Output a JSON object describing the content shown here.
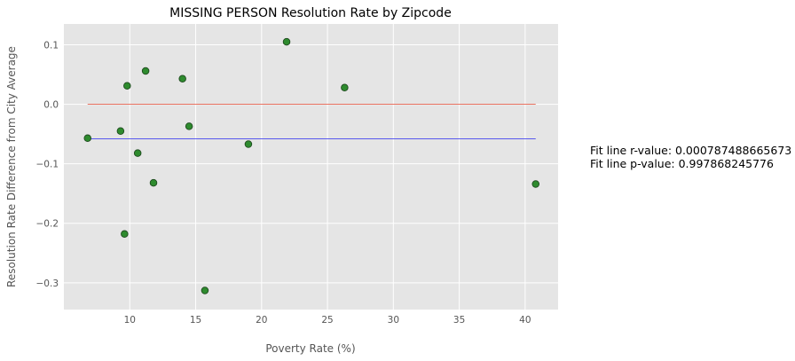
{
  "chart_data": {
    "type": "scatter",
    "title": "MISSING PERSON Resolution Rate by Zipcode",
    "xlabel": "Poverty Rate (%)",
    "ylabel": "Resolution Rate Difference from City Average",
    "xlim": [
      5.0,
      42.5
    ],
    "ylim": [
      -0.345,
      0.135
    ],
    "xticks": [
      10,
      15,
      20,
      25,
      30,
      35,
      40
    ],
    "yticks": [
      -0.3,
      -0.2,
      -0.1,
      0.0,
      0.1
    ],
    "grid": true,
    "background": "#e5e5e5",
    "points": [
      {
        "x": 6.8,
        "y": -0.057
      },
      {
        "x": 9.3,
        "y": -0.045
      },
      {
        "x": 9.6,
        "y": -0.218
      },
      {
        "x": 9.8,
        "y": 0.031
      },
      {
        "x": 10.6,
        "y": -0.082
      },
      {
        "x": 11.2,
        "y": 0.056
      },
      {
        "x": 11.8,
        "y": -0.132
      },
      {
        "x": 14.0,
        "y": 0.043
      },
      {
        "x": 14.5,
        "y": -0.037
      },
      {
        "x": 15.7,
        "y": -0.313
      },
      {
        "x": 19.0,
        "y": -0.067
      },
      {
        "x": 21.9,
        "y": 0.105
      },
      {
        "x": 26.3,
        "y": 0.028
      },
      {
        "x": 40.8,
        "y": -0.134
      }
    ],
    "lines": [
      {
        "x": [
          6.8,
          40.8
        ],
        "y": [
          0.0,
          0.0
        ],
        "color": "#e8604c"
      },
      {
        "x": [
          6.8,
          40.8
        ],
        "y": [
          -0.058,
          -0.058
        ],
        "color": "#4444ee"
      }
    ],
    "point_color": "#2e8b2e",
    "point_edge": "#1f4a1f",
    "annotations": [
      "Fit line r-value: 0.000787488665673",
      "Fit line p-value: 0.997868245776"
    ]
  }
}
